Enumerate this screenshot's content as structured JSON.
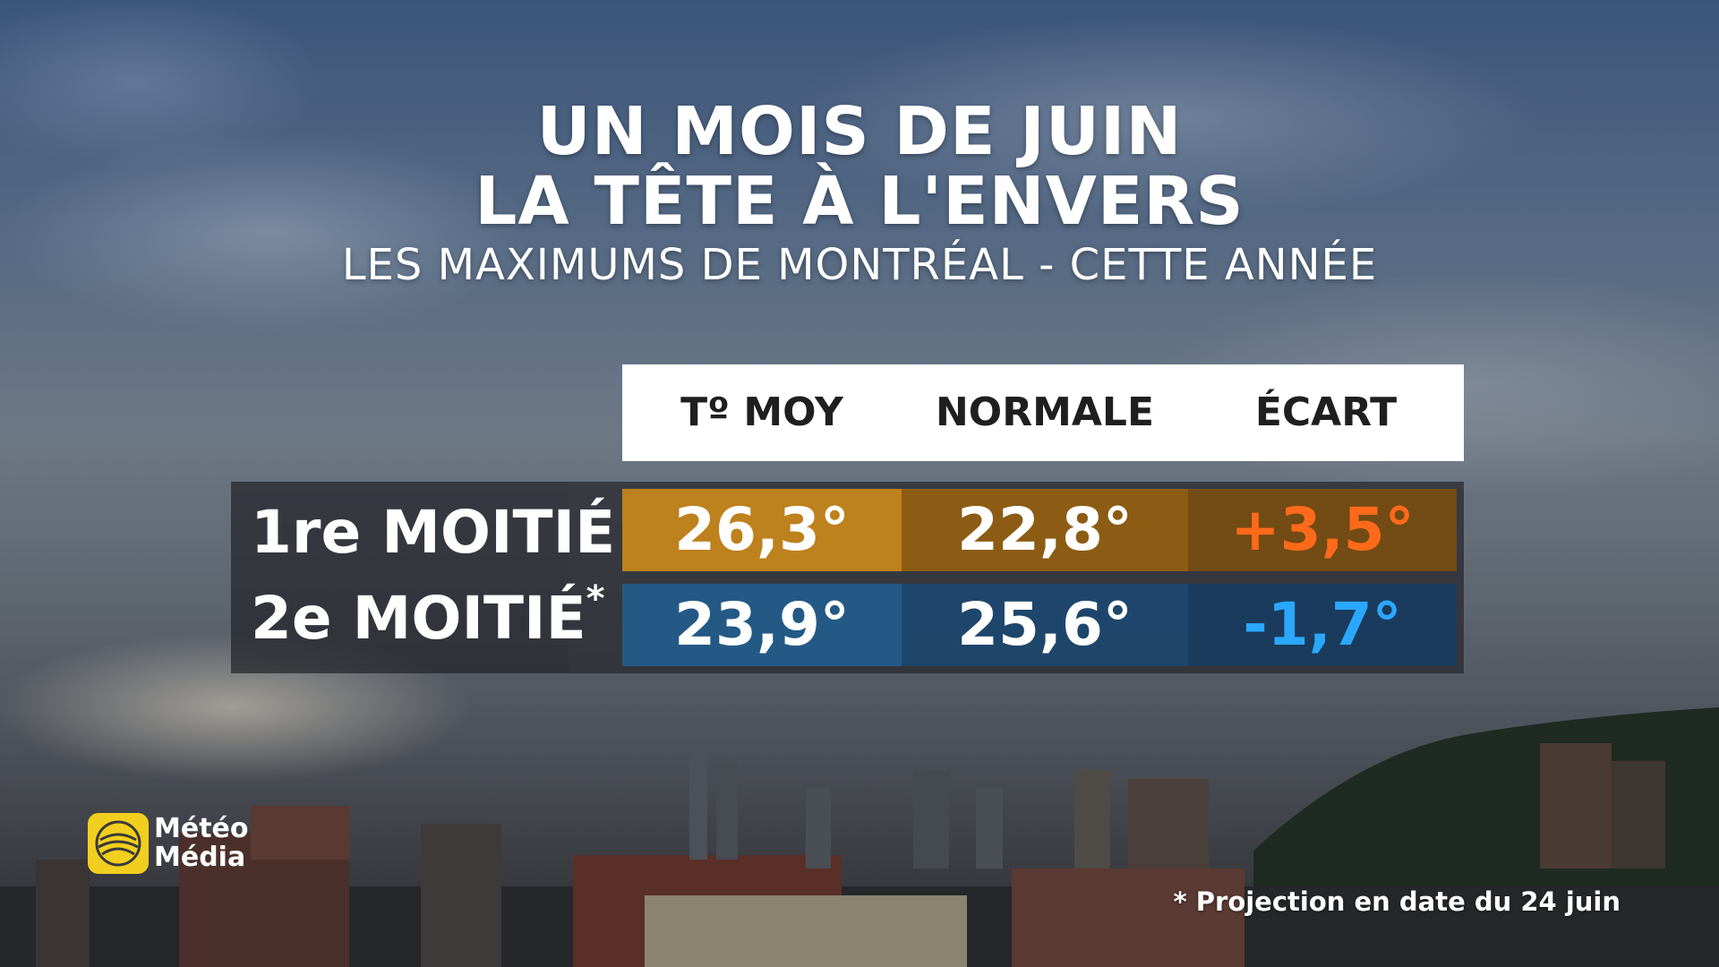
{
  "header": {
    "title_line1": "UN MOIS DE JUIN",
    "title_line2": "LA TÊTE À L'ENVERS",
    "subtitle": "LES MAXIMUMS DE MONTRÉAL - CETTE ANNÉE"
  },
  "table": {
    "columns": [
      "Tº MOY",
      "NORMALE",
      "ÉCART"
    ],
    "rows": [
      {
        "label": "1re MOITIÉ",
        "label_mark": "",
        "values": [
          "26,3°",
          "22,8°",
          "+3,5°"
        ],
        "deviation_color": "#ff6a1a"
      },
      {
        "label": "2e MOITIÉ",
        "label_mark": "*",
        "values": [
          "23,9°",
          "25,6°",
          "-1,7°"
        ],
        "deviation_color": "#2aa8ff"
      }
    ]
  },
  "logo": {
    "line1": "Météo",
    "line2": "Média",
    "icon": "globe-swirl-icon",
    "color": "#f2cf1e"
  },
  "footnote": "* Projection en date du 24 juin"
}
